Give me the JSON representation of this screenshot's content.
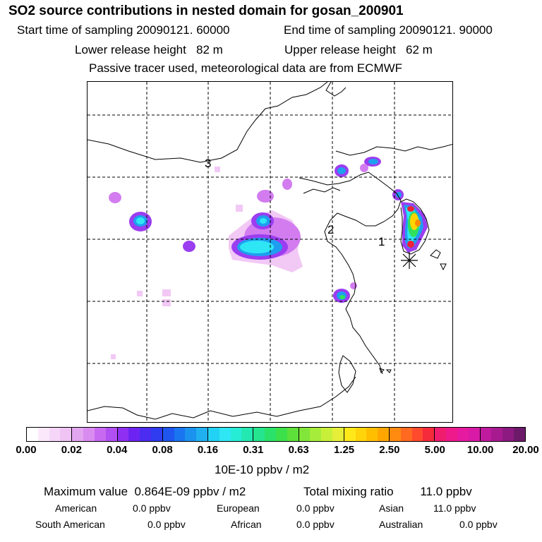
{
  "title": "SO2 source contributions in nested domain for gosan_200901",
  "sampling": {
    "start": "Start time of sampling 20090121. 60000",
    "end": "End time of sampling 20090121. 90000"
  },
  "release": {
    "lower": "Lower release height   82 m",
    "upper": "Upper release height   62 m"
  },
  "note": "Passive tracer used, meteorological data are from ECMWF",
  "map": {
    "labels": [
      "3",
      "2",
      "1"
    ],
    "source_marker": "asterisk-marker",
    "plume_colors": {
      "pale": "#f2c8f5",
      "magenta": "#d27cf0",
      "violet": "#9b3df0",
      "blue": "#3f4cf2",
      "azure": "#1f9ef0",
      "cyan": "#2ee6f4",
      "green": "#2fe05a",
      "yellow": "#ffd400",
      "orange": "#ff8a00",
      "red": "#f0203a"
    }
  },
  "colorbar": {
    "tick_labels": [
      "0.00",
      "0.02",
      "0.04",
      "0.08",
      "0.16",
      "0.31",
      "0.63",
      "1.25",
      "2.50",
      "5.00",
      "10.00",
      "20.00"
    ],
    "colors": [
      "#ffffff",
      "#fbe9fb",
      "#f6d6f8",
      "#f0c3f5",
      "#e2a6f0",
      "#d98cef",
      "#c86af1",
      "#b04ff2",
      "#8f2ff2",
      "#6d24f2",
      "#4b2cf0",
      "#2f3cf0",
      "#1f56f0",
      "#1a75f0",
      "#1a92ee",
      "#20b0f0",
      "#22d2f4",
      "#2ee6f4",
      "#26ecd6",
      "#24e8b2",
      "#25e58e",
      "#2ae26a",
      "#3ce04a",
      "#5ee03a",
      "#82e63a",
      "#a6ec3a",
      "#c8ef3a",
      "#e6ee3a",
      "#ffe81a",
      "#ffd40a",
      "#ffbe00",
      "#ffa600",
      "#ff8a10",
      "#ff6a20",
      "#ff4a2e",
      "#f52a3a",
      "#f01c6e",
      "#ee1a8c",
      "#e61aa0",
      "#d81aa6",
      "#c01a9e",
      "#a81a90",
      "#8c1a80",
      "#6e1a6a"
    ],
    "unit": "10E-10 ppbv / m2"
  },
  "summary": {
    "max": "Maximum value  0.864E-09 ppbv / m2",
    "total": "Total mixing ratio        11.0 ppbv",
    "american_label": "American",
    "american_value": "0.0 ppbv",
    "european_label": "European",
    "european_value": "0.0 ppbv",
    "asian_label": "Asian",
    "asian_value": "11.0 ppbv",
    "south_american_label": "South American",
    "south_american_value": "0.0 ppbv",
    "african_label": "African",
    "african_value": "0.0 ppbv",
    "australian_label": "Australian",
    "australian_value": "0.0 ppbv"
  }
}
